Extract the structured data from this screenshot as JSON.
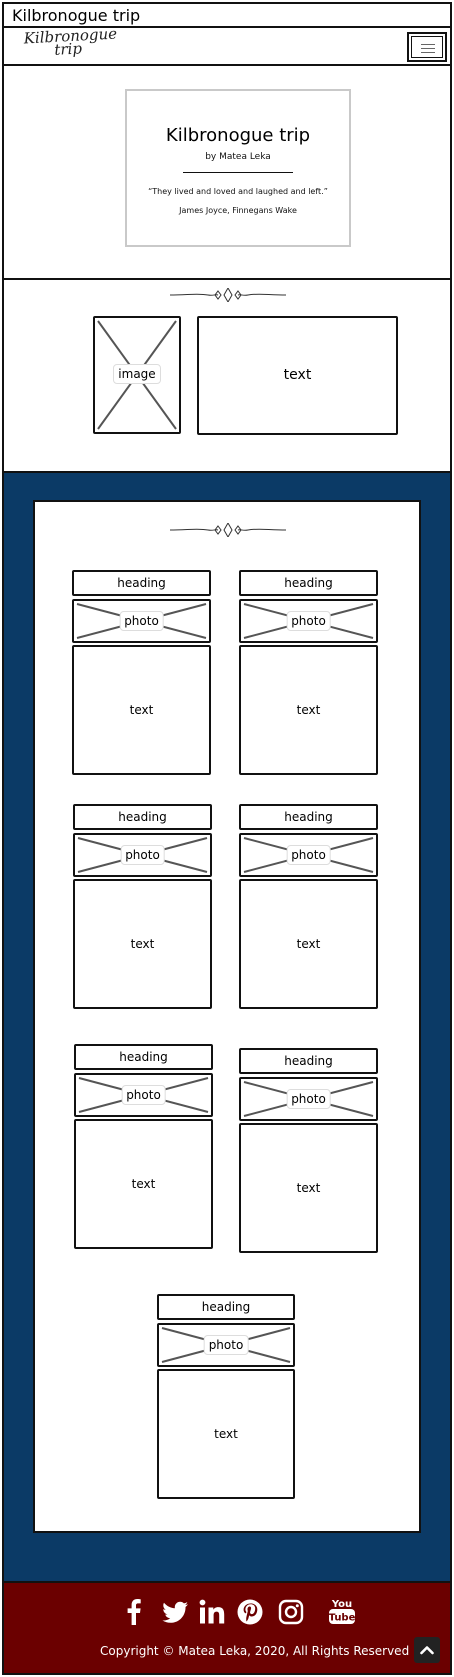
{
  "page": {
    "title": "Kilbronogue trip"
  },
  "navbar": {
    "logo_line1": "Kilbronogue",
    "logo_line2": "trip",
    "menu_icon": "hamburger-icon"
  },
  "hero": {
    "title": "Kilbronogue trip",
    "author": "by Matea Leka",
    "quote": "“They lived and loved and laughed and left.”",
    "source": "James Joyce, Finnegans Wake"
  },
  "intro": {
    "image_label": "image",
    "text_label": "text"
  },
  "cards": [
    {
      "heading": "heading",
      "photo": "photo",
      "text": "text"
    },
    {
      "heading": "heading",
      "photo": "photo",
      "text": "text"
    },
    {
      "heading": "heading",
      "photo": "photo",
      "text": "text"
    },
    {
      "heading": "heading",
      "photo": "photo",
      "text": "text"
    },
    {
      "heading": "heading",
      "photo": "photo",
      "text": "text"
    },
    {
      "heading": "heading",
      "photo": "photo",
      "text": "text"
    },
    {
      "heading": "heading",
      "photo": "photo",
      "text": "text"
    }
  ],
  "footer": {
    "social_icons": [
      "facebook-icon",
      "twitter-icon",
      "linkedin-icon",
      "pinterest-icon",
      "instagram-icon",
      "youtube-icon"
    ],
    "youtube_you": "You",
    "youtube_tube": "Tube",
    "copyright": "Copyright © Matea Leka, 2020, All Rights Reserved",
    "back_to_top_icon": "chevron-up-icon"
  },
  "colors": {
    "section_blue": "#0b3a66",
    "footer_red": "#6b0000",
    "white": "#ffffff",
    "sketch_line": "#111111"
  }
}
